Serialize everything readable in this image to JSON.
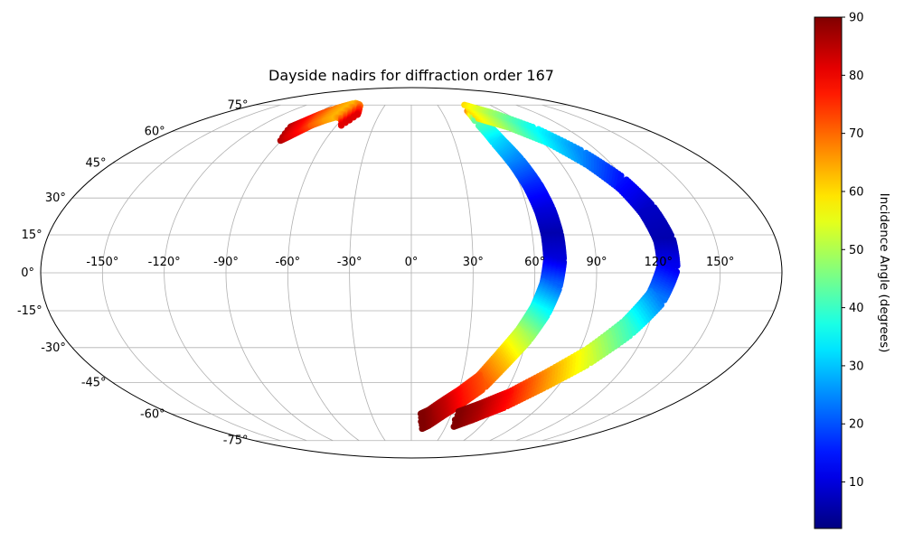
{
  "chart_data": {
    "type": "scatter",
    "projection": "mollweide",
    "title": "Dayside nadirs for diffraction order 167",
    "x_tick_labels": [
      "-150°",
      "-120°",
      "-90°",
      "-60°",
      "-30°",
      "0°",
      "30°",
      "60°",
      "90°",
      "120°",
      "150°"
    ],
    "x_tick_values": [
      -150,
      -120,
      -90,
      -60,
      -30,
      0,
      30,
      60,
      90,
      120,
      150
    ],
    "y_tick_labels": [
      "-75°",
      "-60°",
      "-45°",
      "-30°",
      "-15°",
      "0°",
      "15°",
      "30°",
      "45°",
      "60°",
      "75°"
    ],
    "y_tick_values": [
      -75,
      -60,
      -45,
      -30,
      -15,
      0,
      15,
      30,
      45,
      60,
      75
    ],
    "grid": true,
    "colormap": "jet",
    "color_range": [
      2,
      90
    ],
    "colorbar": {
      "label": "Incidence Angle (degrees)",
      "tick_labels": [
        "10",
        "20",
        "30",
        "40",
        "50",
        "60",
        "70",
        "80",
        "90"
      ],
      "tick_values": [
        10,
        20,
        30,
        40,
        50,
        60,
        70,
        80,
        90
      ]
    },
    "series": [
      {
        "points": [
          {
            "lon": -93,
            "lat": 59,
            "c": 86
          },
          {
            "lon": -90,
            "lat": 61,
            "c": 82
          },
          {
            "lon": -86,
            "lat": 64,
            "c": 78
          },
          {
            "lon": -82,
            "lat": 67,
            "c": 72
          },
          {
            "lon": -75,
            "lat": 70,
            "c": 66
          },
          {
            "lon": -68,
            "lat": 72,
            "c": 63
          },
          {
            "lon": -60,
            "lat": 71,
            "c": 68
          },
          {
            "lon": -55,
            "lat": 68,
            "c": 76
          },
          {
            "lon": -53,
            "lat": 66,
            "c": 82
          }
        ]
      },
      {
        "points": [
          {
            "lon": 60,
            "lat": 70,
            "c": 68
          },
          {
            "lon": 58,
            "lat": 64,
            "c": 42
          },
          {
            "lon": 60,
            "lat": 55,
            "c": 32
          },
          {
            "lon": 64,
            "lat": 45,
            "c": 24
          },
          {
            "lon": 67,
            "lat": 35,
            "c": 16
          },
          {
            "lon": 69,
            "lat": 25,
            "c": 10
          },
          {
            "lon": 70,
            "lat": 15,
            "c": 6
          },
          {
            "lon": 70,
            "lat": 5,
            "c": 10
          },
          {
            "lon": 68,
            "lat": -5,
            "c": 22
          },
          {
            "lon": 64,
            "lat": -15,
            "c": 36
          },
          {
            "lon": 58,
            "lat": -25,
            "c": 50
          },
          {
            "lon": 50,
            "lat": -35,
            "c": 62
          },
          {
            "lon": 42,
            "lat": -45,
            "c": 72
          },
          {
            "lon": 32,
            "lat": -52,
            "c": 78
          },
          {
            "lon": 23,
            "lat": -57,
            "c": 84
          },
          {
            "lon": 14,
            "lat": -62,
            "c": 88
          },
          {
            "lon": 8,
            "lat": -64,
            "c": 90
          }
        ]
      },
      {
        "points": [
          {
            "lon": 60,
            "lat": 71,
            "c": 60
          },
          {
            "lon": 78,
            "lat": 66,
            "c": 48
          },
          {
            "lon": 95,
            "lat": 58,
            "c": 35
          },
          {
            "lon": 108,
            "lat": 47,
            "c": 24
          },
          {
            "lon": 117,
            "lat": 36,
            "c": 14
          },
          {
            "lon": 122,
            "lat": 25,
            "c": 8
          },
          {
            "lon": 125,
            "lat": 13,
            "c": 6
          },
          {
            "lon": 125,
            "lat": 2,
            "c": 12
          },
          {
            "lon": 120,
            "lat": -10,
            "c": 24
          },
          {
            "lon": 110,
            "lat": -22,
            "c": 40
          },
          {
            "lon": 96,
            "lat": -34,
            "c": 54
          },
          {
            "lon": 80,
            "lat": -44,
            "c": 66
          },
          {
            "lon": 64,
            "lat": -53,
            "c": 78
          },
          {
            "lon": 48,
            "lat": -59,
            "c": 86
          },
          {
            "lon": 35,
            "lat": -63,
            "c": 90
          }
        ]
      }
    ]
  }
}
